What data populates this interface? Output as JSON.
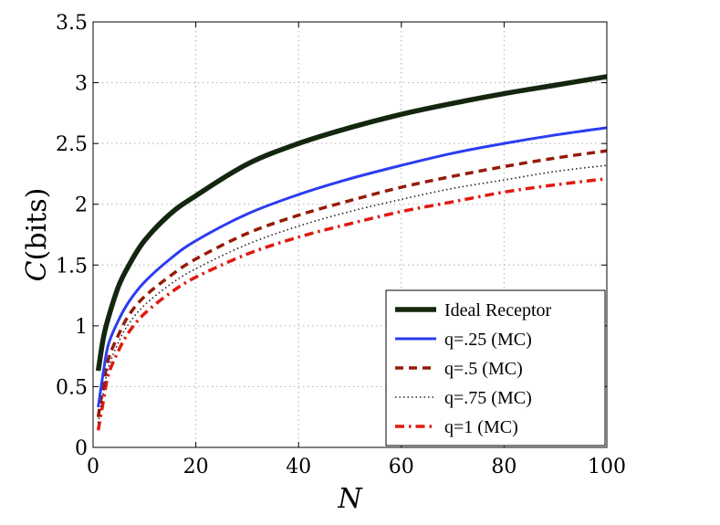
{
  "chart_data": {
    "type": "line",
    "title": "",
    "xlabel": "N",
    "ylabel_italic": "C",
    "ylabel_unit": "(bits)",
    "xlim": [
      0,
      100
    ],
    "ylim": [
      0,
      3.5
    ],
    "xticks": [
      0,
      20,
      40,
      60,
      80,
      100
    ],
    "yticks": [
      0,
      0.5,
      1,
      1.5,
      2,
      2.5,
      3,
      3.5
    ],
    "xtick_labels": [
      "0",
      "20",
      "40",
      "60",
      "80",
      "100"
    ],
    "ytick_labels": [
      "0",
      "0.5",
      "1",
      "1.5",
      "2",
      "2.5",
      "3",
      "3.5"
    ],
    "grid": true,
    "legend_position": "bottom-right",
    "x": [
      1,
      2,
      3,
      5,
      7,
      10,
      15,
      20,
      30,
      40,
      50,
      60,
      70,
      80,
      90,
      100
    ],
    "series": [
      {
        "name": "Ideal Receptor",
        "color": "#13270f",
        "style": "solid-thick",
        "values": [
          0.63,
          0.9,
          1.07,
          1.33,
          1.5,
          1.7,
          1.92,
          2.07,
          2.33,
          2.5,
          2.63,
          2.74,
          2.83,
          2.91,
          2.98,
          3.05
        ]
      },
      {
        "name": "q=.25 (MC)",
        "color": "#2b3cf0",
        "style": "solid",
        "values": [
          0.33,
          0.62,
          0.85,
          1.05,
          1.2,
          1.36,
          1.55,
          1.7,
          1.92,
          2.08,
          2.21,
          2.32,
          2.42,
          2.5,
          2.57,
          2.63
        ]
      },
      {
        "name": "q=.5 (MC)",
        "color": "#951b07",
        "style": "dashed",
        "values": [
          0.25,
          0.52,
          0.73,
          0.93,
          1.09,
          1.24,
          1.41,
          1.55,
          1.76,
          1.91,
          2.03,
          2.14,
          2.23,
          2.31,
          2.38,
          2.44
        ]
      },
      {
        "name": "q=.75 (MC)",
        "color": "#222222",
        "style": "dotted",
        "values": [
          0.2,
          0.45,
          0.66,
          0.87,
          1.02,
          1.17,
          1.34,
          1.47,
          1.67,
          1.82,
          1.94,
          2.04,
          2.13,
          2.2,
          2.27,
          2.32
        ]
      },
      {
        "name": "q=1 (MC)",
        "color": "#e0190f",
        "style": "dashdot",
        "values": [
          0.14,
          0.38,
          0.6,
          0.8,
          0.95,
          1.1,
          1.27,
          1.4,
          1.59,
          1.73,
          1.84,
          1.94,
          2.02,
          2.1,
          2.16,
          2.21
        ]
      }
    ]
  }
}
